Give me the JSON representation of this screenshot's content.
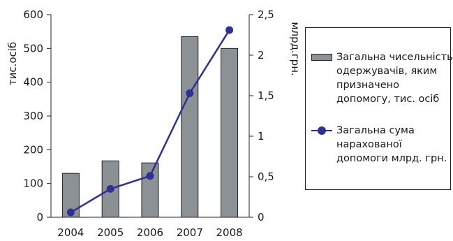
{
  "chart_data": {
    "type": "bar+line",
    "categories": [
      "2004",
      "2005",
      "2006",
      "2007",
      "2008"
    ],
    "series": [
      {
        "name": "Загальна чисельність одержувачів, яким призначено допомогу, тис. осіб",
        "type": "bar",
        "axis": "left",
        "values": [
          130,
          167,
          161,
          535,
          500
        ]
      },
      {
        "name": "Загальна сума нарахованої допомоги млрд. грн.",
        "type": "line",
        "axis": "right",
        "values": [
          0.06,
          0.35,
          0.51,
          1.53,
          2.31
        ]
      }
    ],
    "y_left": {
      "label": "тис.осіб",
      "ylim": [
        0,
        600
      ],
      "ticks": [
        "0",
        "100",
        "200",
        "300",
        "400",
        "500",
        "600"
      ]
    },
    "y_right": {
      "label": "млрд.грн.",
      "ylim": [
        0,
        2.5
      ],
      "ticks": [
        "0",
        "0,5",
        "1",
        "1,5",
        "2",
        "2,5"
      ]
    },
    "legend_position": "right",
    "grid": false,
    "colors": {
      "bar": "#8c9196",
      "line": "#2e3192"
    }
  }
}
